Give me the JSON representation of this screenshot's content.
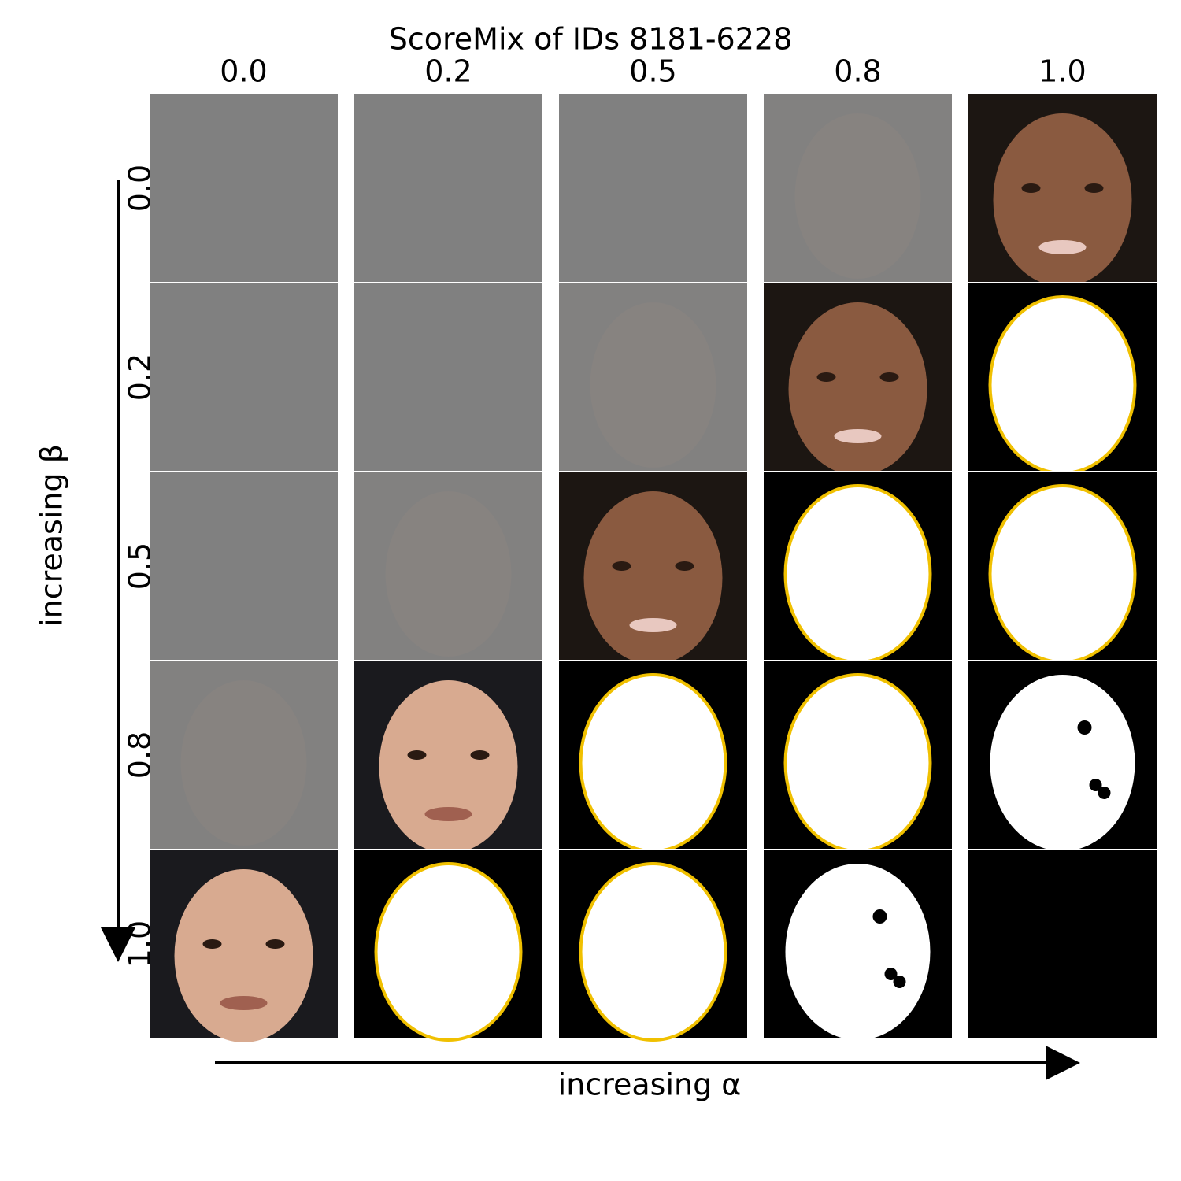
{
  "title": "ScoreMix of IDs 8181-6228",
  "columns": [
    "0.0",
    "0.2",
    "0.5",
    "0.8",
    "1.0"
  ],
  "rows": [
    "0.0",
    "0.2",
    "0.5",
    "0.8",
    "1.0"
  ],
  "x_label": "increasing α",
  "y_label": "increasing β"
}
